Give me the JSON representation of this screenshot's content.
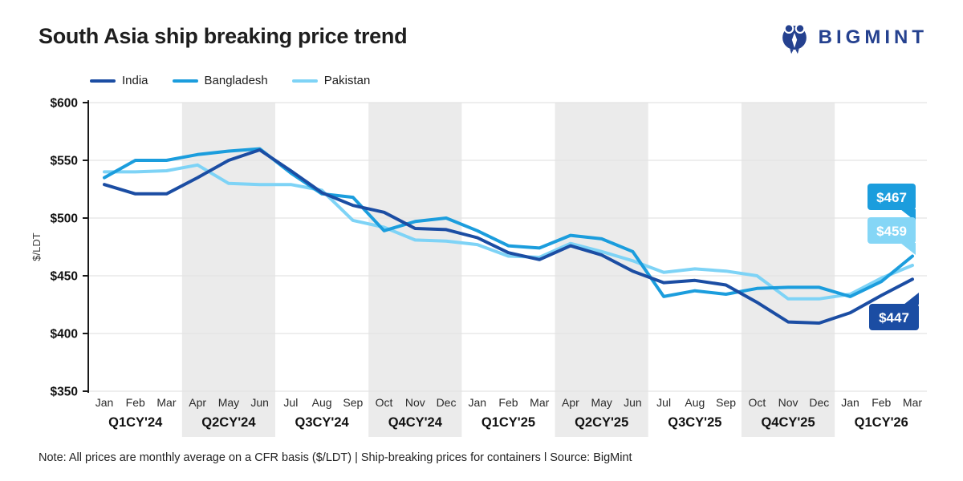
{
  "header": {
    "title": "South Asia ship breaking price trend",
    "logo_text": "BIGMINT"
  },
  "legend": {
    "items": [
      {
        "label": "India",
        "color": "#1b4da3"
      },
      {
        "label": "Bangladesh",
        "color": "#1b9ddd"
      },
      {
        "label": "Pakistan",
        "color": "#7ed3f6"
      }
    ]
  },
  "chart_data": {
    "type": "line",
    "title": "South Asia ship breaking price trend",
    "xlabel": "",
    "ylabel": "$/LDT",
    "ylim": [
      350,
      600
    ],
    "yticks": [
      350,
      400,
      450,
      500,
      550,
      600
    ],
    "ytick_labels": [
      "$350",
      "$400",
      "$450",
      "$500",
      "$550",
      "$600"
    ],
    "grid": true,
    "legend_position": "top-left",
    "months": [
      "Jan",
      "Feb",
      "Mar",
      "Apr",
      "May",
      "Jun",
      "Jul",
      "Aug",
      "Sep",
      "Oct",
      "Nov",
      "Dec",
      "Jan",
      "Feb",
      "Mar",
      "Apr",
      "May",
      "Jun",
      "Jul",
      "Aug",
      "Sep",
      "Oct",
      "Nov",
      "Dec",
      "Jan",
      "Feb",
      "Mar"
    ],
    "quarters": [
      {
        "label": "Q1CY'24",
        "shaded": false
      },
      {
        "label": "Q2CY'24",
        "shaded": true
      },
      {
        "label": "Q3CY'24",
        "shaded": false
      },
      {
        "label": "Q4CY'24",
        "shaded": true
      },
      {
        "label": "Q1CY'25",
        "shaded": false
      },
      {
        "label": "Q2CY'25",
        "shaded": true
      },
      {
        "label": "Q3CY'25",
        "shaded": false
      },
      {
        "label": "Q4CY'25",
        "shaded": true
      },
      {
        "label": "Q1CY'26",
        "shaded": false
      }
    ],
    "series": [
      {
        "name": "Pakistan",
        "color": "#7ed3f6",
        "values": [
          540,
          540,
          541,
          546,
          530,
          529,
          529,
          524,
          498,
          492,
          481,
          480,
          477,
          467,
          466,
          478,
          471,
          463,
          453,
          456,
          454,
          450,
          430,
          430,
          434,
          448,
          459
        ]
      },
      {
        "name": "Bangladesh",
        "color": "#1b9ddd",
        "values": [
          535,
          550,
          550,
          555,
          558,
          560,
          539,
          521,
          518,
          489,
          497,
          500,
          489,
          476,
          474,
          485,
          482,
          471,
          432,
          437,
          434,
          439,
          440,
          440,
          432,
          445,
          467
        ]
      },
      {
        "name": "India",
        "color": "#1b4da3",
        "values": [
          529,
          521,
          521,
          535,
          550,
          559,
          541,
          522,
          511,
          505,
          491,
          490,
          483,
          470,
          464,
          476,
          468,
          454,
          444,
          446,
          442,
          427,
          410,
          409,
          418,
          433,
          447
        ]
      }
    ],
    "end_labels": [
      {
        "text": "$467",
        "series": "Bangladesh",
        "color": "#1b9ddd"
      },
      {
        "text": "$459",
        "series": "Pakistan",
        "color": "#85d6f6"
      },
      {
        "text": "$447",
        "series": "India",
        "color": "#1b4da3"
      }
    ],
    "band_color": "#ebebeb",
    "gridline_color": "#e3e3e3",
    "axis_color": "#1a1a1a"
  },
  "note": "Note: All prices are monthly average on a CFR basis ($/LDT)  |  Ship-breaking prices for containers  l  Source: BigMint"
}
